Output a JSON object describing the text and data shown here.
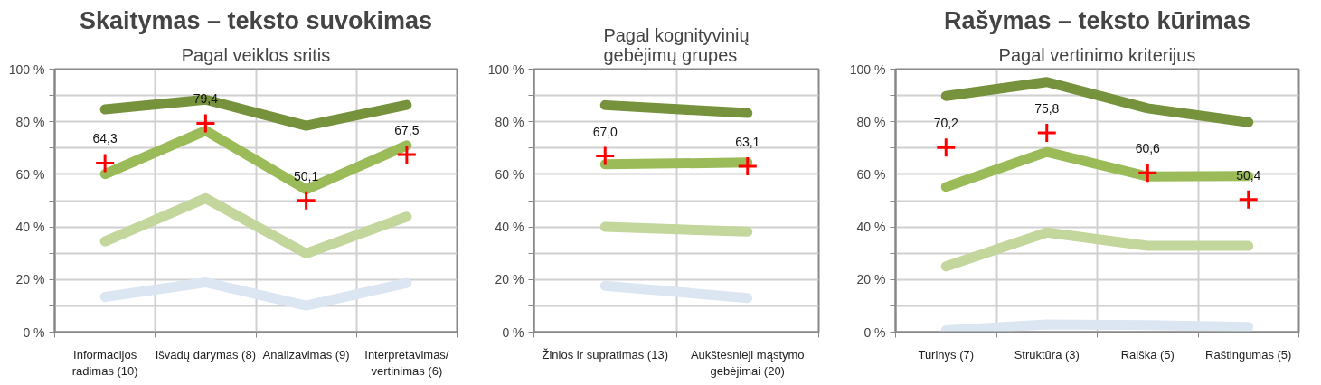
{
  "chart_data": [
    {
      "type": "line",
      "title": "Skaitymas – teksto suvokimas",
      "subtitle": "Pagal veiklos sritis",
      "categories": [
        "Informacijos radimas (10)",
        "Išvadų darymas (8)",
        "Analizavimas (9)",
        "Interpretavimas/ vertinimas (6)"
      ],
      "ylim": [
        0,
        100
      ],
      "yticks": [
        {
          "value": 0,
          "label": "0 %"
        },
        {
          "value": 10,
          "label": null
        },
        {
          "value": 20,
          "label": "20 %"
        },
        {
          "value": 30,
          "label": null
        },
        {
          "value": 40,
          "label": "40 %"
        },
        {
          "value": 50,
          "label": null
        },
        {
          "value": 60,
          "label": "60 %"
        },
        {
          "value": 70,
          "label": null
        },
        {
          "value": 80,
          "label": "80 %"
        },
        {
          "value": 90,
          "label": null
        },
        {
          "value": 100,
          "label": "100 %"
        }
      ],
      "grid": true,
      "series": [
        {
          "color": "#76923c",
          "values": [
            84.7,
            88.4,
            78.5,
            86.4
          ]
        },
        {
          "color": "#9bbb59",
          "values": [
            60.1,
            76.6,
            54.2,
            71.0
          ]
        },
        {
          "color": "#c3d69b",
          "values": [
            34.5,
            50.9,
            29.9,
            43.9
          ]
        },
        {
          "color": "#dce6f2",
          "values": [
            13.4,
            18.9,
            10.1,
            18.7
          ]
        },
        {
          "type": "scatter",
          "marker": "cross",
          "color": "#ff0000",
          "values": [
            64.3,
            79.4,
            50.1,
            67.5
          ],
          "value_labels": [
            "64,3",
            "79,4",
            "50,1",
            "67,5"
          ]
        }
      ]
    },
    {
      "type": "line",
      "subtitle": "Pagal kognityvinių gebėjimų grupes",
      "categories": [
        "Žinios ir supratimas (13)",
        "Aukštesnieji mąstymo gebėjimai (20)"
      ],
      "ylim": [
        0,
        100
      ],
      "yticks": [
        {
          "value": 0,
          "label": "0 %"
        },
        {
          "value": 10,
          "label": null
        },
        {
          "value": 20,
          "label": "20 %"
        },
        {
          "value": 30,
          "label": null
        },
        {
          "value": 40,
          "label": "40 %"
        },
        {
          "value": 50,
          "label": null
        },
        {
          "value": 60,
          "label": "60 %"
        },
        {
          "value": 70,
          "label": null
        },
        {
          "value": 80,
          "label": "80 %"
        },
        {
          "value": 90,
          "label": null
        },
        {
          "value": 100,
          "label": "100 %"
        }
      ],
      "grid": true,
      "series": [
        {
          "color": "#76923c",
          "values": [
            86.3,
            83.3
          ]
        },
        {
          "color": "#9bbb59",
          "values": [
            63.8,
            64.5
          ]
        },
        {
          "color": "#c3d69b",
          "values": [
            40.0,
            38.2
          ]
        },
        {
          "color": "#dce6f2",
          "values": [
            17.6,
            13.0
          ]
        },
        {
          "type": "scatter",
          "marker": "cross",
          "color": "#ff0000",
          "values": [
            67.0,
            63.1
          ],
          "value_labels": [
            "67,0",
            "63,1"
          ]
        }
      ]
    },
    {
      "type": "line",
      "title": "Rašymas – teksto kūrimas",
      "subtitle": "Pagal vertinimo kriterijus",
      "categories": [
        "Turinys (7)",
        "Struktūra (3)",
        "Raiška (5)",
        "Raštingumas (5)"
      ],
      "ylim": [
        0,
        100
      ],
      "yticks": [
        {
          "value": 0,
          "label": "0 %"
        },
        {
          "value": 10,
          "label": null
        },
        {
          "value": 20,
          "label": "20 %"
        },
        {
          "value": 30,
          "label": null
        },
        {
          "value": 40,
          "label": "40 %"
        },
        {
          "value": 50,
          "label": null
        },
        {
          "value": 60,
          "label": "60 %"
        },
        {
          "value": 70,
          "label": null
        },
        {
          "value": 80,
          "label": "80 %"
        },
        {
          "value": 90,
          "label": null
        },
        {
          "value": 100,
          "label": "100 %"
        }
      ],
      "grid": true,
      "series": [
        {
          "color": "#76923c",
          "values": [
            89.8,
            95.1,
            85.1,
            79.8
          ]
        },
        {
          "color": "#9bbb59",
          "values": [
            55.2,
            68.5,
            59.2,
            59.4
          ]
        },
        {
          "color": "#c3d69b",
          "values": [
            25.0,
            37.9,
            32.8,
            32.8
          ]
        },
        {
          "color": "#dce6f2",
          "values": [
            0.7,
            2.9,
            2.7,
            2.0
          ]
        },
        {
          "type": "scatter",
          "marker": "cross",
          "color": "#ff0000",
          "values": [
            70.2,
            75.8,
            60.6,
            50.4
          ],
          "value_labels": [
            "70,2",
            "75,8",
            "60,6",
            "50,4"
          ]
        }
      ]
    }
  ]
}
